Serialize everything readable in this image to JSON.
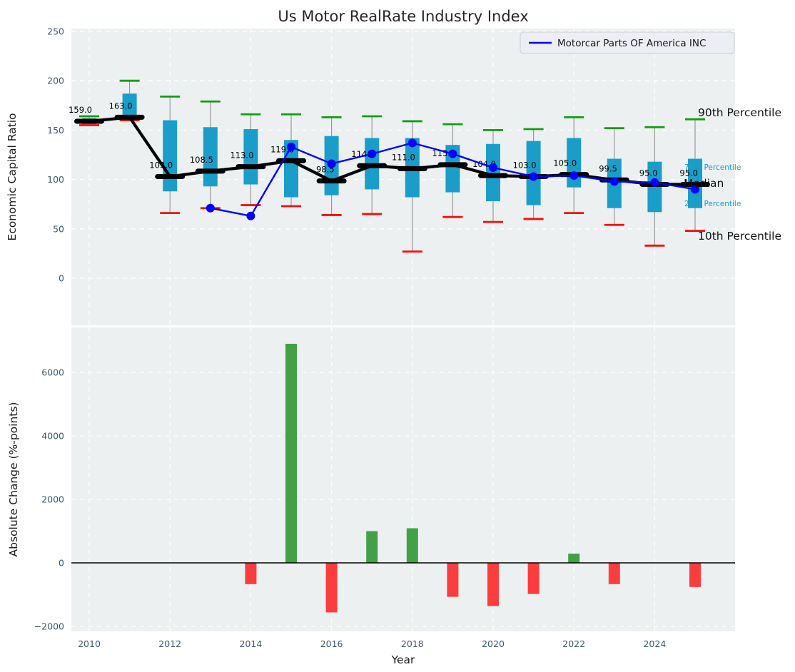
{
  "title": "Us Motor RealRate Industry Index",
  "legend": {
    "label": "Motorcar Parts OF America INC"
  },
  "colors": {
    "box_fill": "#1b9dca",
    "whisker": "#999999",
    "p90_cap": "#149b14",
    "p10_cap": "#f80c0c",
    "median": "#000000",
    "company_line": "#0000ff",
    "bar_positive": "#43a047",
    "bar_negative": "#fb3d3d",
    "plot_bg": "#ecf0f0",
    "grid": "#ffffff",
    "tick_label": "#3e5871",
    "percentile_label": "#18a0c4"
  },
  "chart_data": [
    {
      "type": "boxplot",
      "title": "Us Motor RealRate Industry Index",
      "ylabel": "Economic Capital Ratio",
      "ylim": [
        -48,
        250
      ],
      "yticks": [
        0,
        50,
        100,
        150,
        200,
        250
      ],
      "xticks": [
        2010,
        2012,
        2014,
        2016,
        2018,
        2020,
        2022,
        2024
      ],
      "grid": true,
      "years": [
        2010,
        2011,
        2012,
        2013,
        2014,
        2015,
        2016,
        2017,
        2018,
        2019,
        2020,
        2021,
        2022,
        2023,
        2024,
        2025
      ],
      "median": [
        159,
        163,
        103,
        108.5,
        113,
        119,
        98.5,
        114,
        111,
        115,
        104,
        103,
        105,
        99.5,
        95,
        95
      ],
      "median_labels": [
        "159.0",
        "163.0",
        "103.0",
        "108.5",
        "113.0",
        "119.0",
        "98.5",
        "114.0",
        "111.0",
        "115.0",
        "104.0",
        "103.0",
        "105.0",
        "99.5",
        "95.0",
        "95.0"
      ],
      "q1": [
        156,
        163,
        88,
        93,
        95,
        82,
        84,
        90,
        82,
        87,
        78,
        74,
        92,
        71,
        67,
        71
      ],
      "q3": [
        162,
        187,
        160,
        153,
        151,
        140,
        144,
        142,
        142,
        135,
        136,
        139,
        142,
        121,
        118,
        121
      ],
      "p10": [
        155,
        160,
        66,
        71,
        74,
        73,
        64,
        65,
        27,
        62,
        57,
        60,
        66,
        54,
        33,
        48
      ],
      "p90": [
        164,
        200,
        184,
        179,
        166,
        166,
        163,
        164,
        159,
        156,
        150,
        151,
        163,
        152,
        153,
        161
      ],
      "right_labels": [
        {
          "text": "90th Percentile",
          "style": "big"
        },
        {
          "text": "75th Percentile",
          "style": "small"
        },
        {
          "text": "Median",
          "style": "big"
        },
        {
          "text": "25th Percentile",
          "style": "small"
        },
        {
          "text": "10th Percentile",
          "style": "big"
        }
      ],
      "series": [
        {
          "name": "Motorcar Parts OF America INC",
          "years": [
            2013,
            2014,
            2015,
            2016,
            2017,
            2018,
            2019,
            2020,
            2021,
            2022,
            2023,
            2024,
            2025
          ],
          "values": [
            71,
            63,
            133,
            116,
            126,
            137,
            126,
            112,
            103,
            104,
            98,
            97,
            90
          ]
        }
      ]
    },
    {
      "type": "bar",
      "ylabel": "Absolute Change (%-points)",
      "xlabel": "Year",
      "ylim": [
        -2160,
        7390
      ],
      "yticks": [
        -2000,
        0,
        2000,
        4000,
        6000
      ],
      "xticks": [
        2010,
        2012,
        2014,
        2016,
        2018,
        2020,
        2022,
        2024
      ],
      "grid": true,
      "years": [
        2014,
        2015,
        2016,
        2017,
        2018,
        2019,
        2020,
        2021,
        2022,
        2023,
        2024,
        2025
      ],
      "values": [
        -670,
        6900,
        -1560,
        1000,
        1090,
        -1070,
        -1360,
        -980,
        290,
        -670,
        0,
        -760
      ]
    }
  ]
}
